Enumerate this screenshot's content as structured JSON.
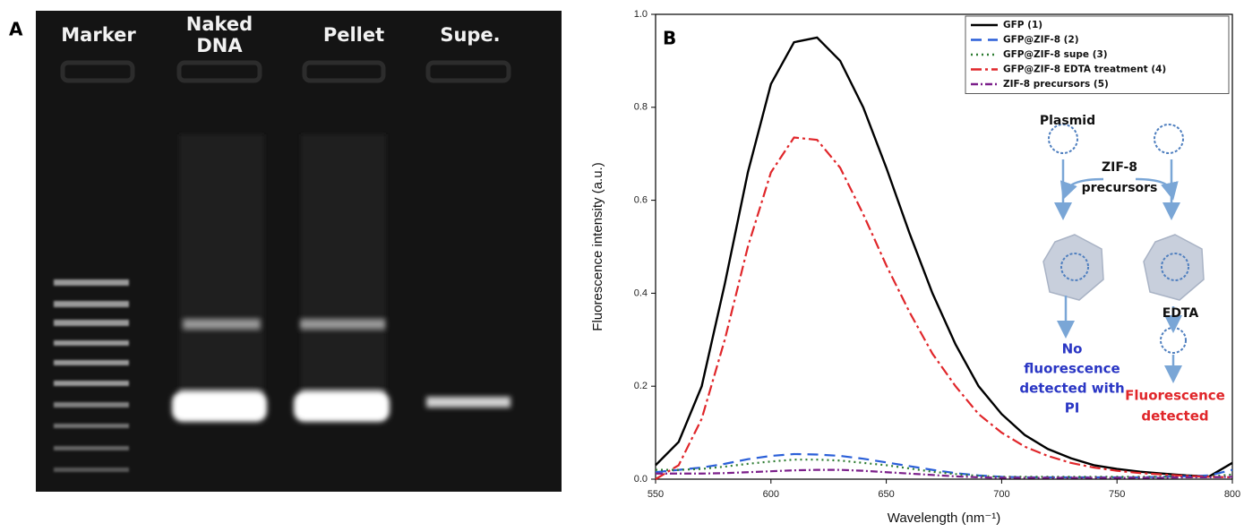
{
  "panel_labels": [
    "A",
    "B"
  ],
  "gel": {
    "lanes": [
      [
        "Marker"
      ],
      [
        "Naked",
        "DNA"
      ],
      [
        "Pellet"
      ],
      [
        "Supe."
      ]
    ]
  },
  "inset": {
    "plasmid": "Plasmid",
    "reagent": [
      "ZIF-8",
      "precursors"
    ],
    "edta": "EDTA",
    "left_result": [
      "No",
      "fluorescence",
      "detected with",
      "PI"
    ],
    "right_result": [
      "Fluorescence",
      "detected"
    ]
  },
  "chart_data": {
    "type": "line",
    "xlabel": "Wavelength (nm⁻¹)",
    "ylabel": "Fluorescence intensity (a.u.)",
    "xlim": [
      550,
      800
    ],
    "xticks": [
      550,
      600,
      650,
      700,
      750,
      800
    ],
    "ylim": [
      0,
      1
    ],
    "yticks": [
      {
        "value": 0,
        "label": "0.0"
      },
      0.2,
      0.4,
      0.6,
      0.8,
      {
        "value": 1,
        "label": "1.0"
      }
    ],
    "legend": "upper right",
    "x": [
      550,
      560,
      570,
      580,
      590,
      600,
      610,
      620,
      630,
      640,
      650,
      660,
      670,
      680,
      690,
      700,
      710,
      720,
      730,
      740,
      750,
      760,
      770,
      780,
      790,
      800
    ],
    "series": [
      {
        "name": "GFP (1)",
        "color": "#000000",
        "dash": "none",
        "values": [
          0.03,
          0.08,
          0.2,
          0.42,
          0.66,
          0.85,
          0.94,
          0.95,
          0.9,
          0.8,
          0.67,
          0.53,
          0.4,
          0.29,
          0.2,
          0.14,
          0.095,
          0.065,
          0.045,
          0.03,
          0.022,
          0.016,
          0.012,
          0.008,
          0.006,
          0.035
        ]
      },
      {
        "name": "GFP@ZIF-8 (2)",
        "color": "#2a5fd8",
        "dash": "12 7",
        "values": [
          0.015,
          0.02,
          0.025,
          0.033,
          0.043,
          0.05,
          0.054,
          0.053,
          0.05,
          0.044,
          0.036,
          0.028,
          0.02,
          0.013,
          0.008,
          0.005,
          0.004,
          0.004,
          0.004,
          0.004,
          0.004,
          0.004,
          0.005,
          0.006,
          0.008,
          0.02
        ]
      },
      {
        "name": "GFP@ZIF-8 supe (3)",
        "color": "#2e7d32",
        "dash": "2 4",
        "values": [
          0.02,
          0.02,
          0.022,
          0.027,
          0.033,
          0.038,
          0.042,
          0.042,
          0.04,
          0.035,
          0.03,
          0.023,
          0.016,
          0.011,
          0.007,
          0.005,
          0.005,
          0.005,
          0.005,
          0.005,
          0.005,
          0.005,
          0.005,
          0.005,
          0.006,
          0.01
        ]
      },
      {
        "name": "GFP@ZIF-8 EDTA treatment (4)",
        "color": "#e0262a",
        "dash": "12 4 3 4",
        "values": [
          0,
          0.03,
          0.13,
          0.3,
          0.5,
          0.66,
          0.735,
          0.73,
          0.67,
          0.57,
          0.46,
          0.36,
          0.27,
          0.2,
          0.14,
          0.1,
          0.07,
          0.05,
          0.035,
          0.025,
          0.018,
          0.013,
          0.01,
          0.007,
          0.005,
          0.004
        ]
      },
      {
        "name": "ZIF-8 precursors (5)",
        "color": "#7b1f8a",
        "dash": "8 3 2 3",
        "values": [
          0.012,
          0.012,
          0.012,
          0.013,
          0.015,
          0.017,
          0.019,
          0.02,
          0.02,
          0.018,
          0.015,
          0.012,
          0.009,
          0.006,
          0.004,
          0.003,
          0.003,
          0.003,
          0.003,
          0.003,
          0.003,
          0.003,
          0.003,
          0.004,
          0.004,
          0.005
        ]
      }
    ]
  }
}
